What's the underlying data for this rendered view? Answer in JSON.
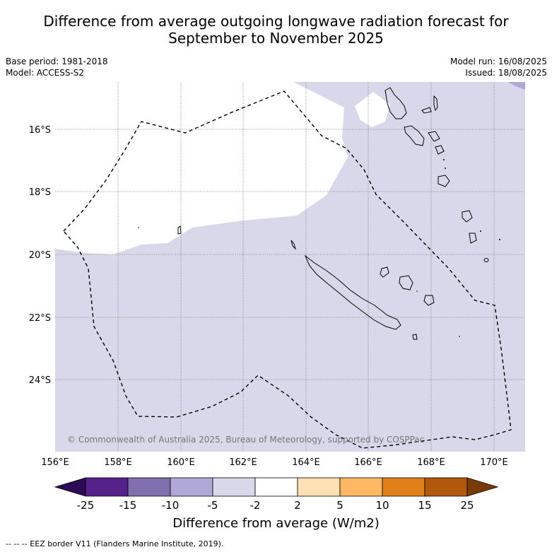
{
  "title_line1": "Difference from average outgoing longwave radiation forecast for",
  "title_line2": "September to November 2025",
  "base_period": "Base period: 1981-2018",
  "model": "Model: ACCESS-S2",
  "model_run": "Model run: 16/08/2025",
  "issued": "Issued: 18/08/2025",
  "copyright": "© Commonwealth of Australia 2025, Bureau of Meteorology, supported by COSPPac",
  "lat_labels": [
    "16°S",
    "18°S",
    "20°S",
    "22°S",
    "24°S"
  ],
  "lon_labels": [
    "156°E",
    "158°E",
    "160°E",
    "162°E",
    "164°E",
    "166°E",
    "168°E",
    "170°E"
  ],
  "colorbar": {
    "title": "Difference from average (W/m2)",
    "ticks": [
      "-25",
      "-15",
      "-10",
      "-5",
      "-2",
      "2",
      "5",
      "10",
      "15",
      "25"
    ],
    "colors": [
      "#2d0a55",
      "#55228a",
      "#8070b0",
      "#b0a8d6",
      "#d8d8ea",
      "#ffffff",
      "#ffe0b5",
      "#feb863",
      "#e08018",
      "#b0580c",
      "#7a3a05"
    ]
  },
  "eez_note": "--  --  -- EEZ border V11 (Flanders Marine Institute, 2019)."
}
